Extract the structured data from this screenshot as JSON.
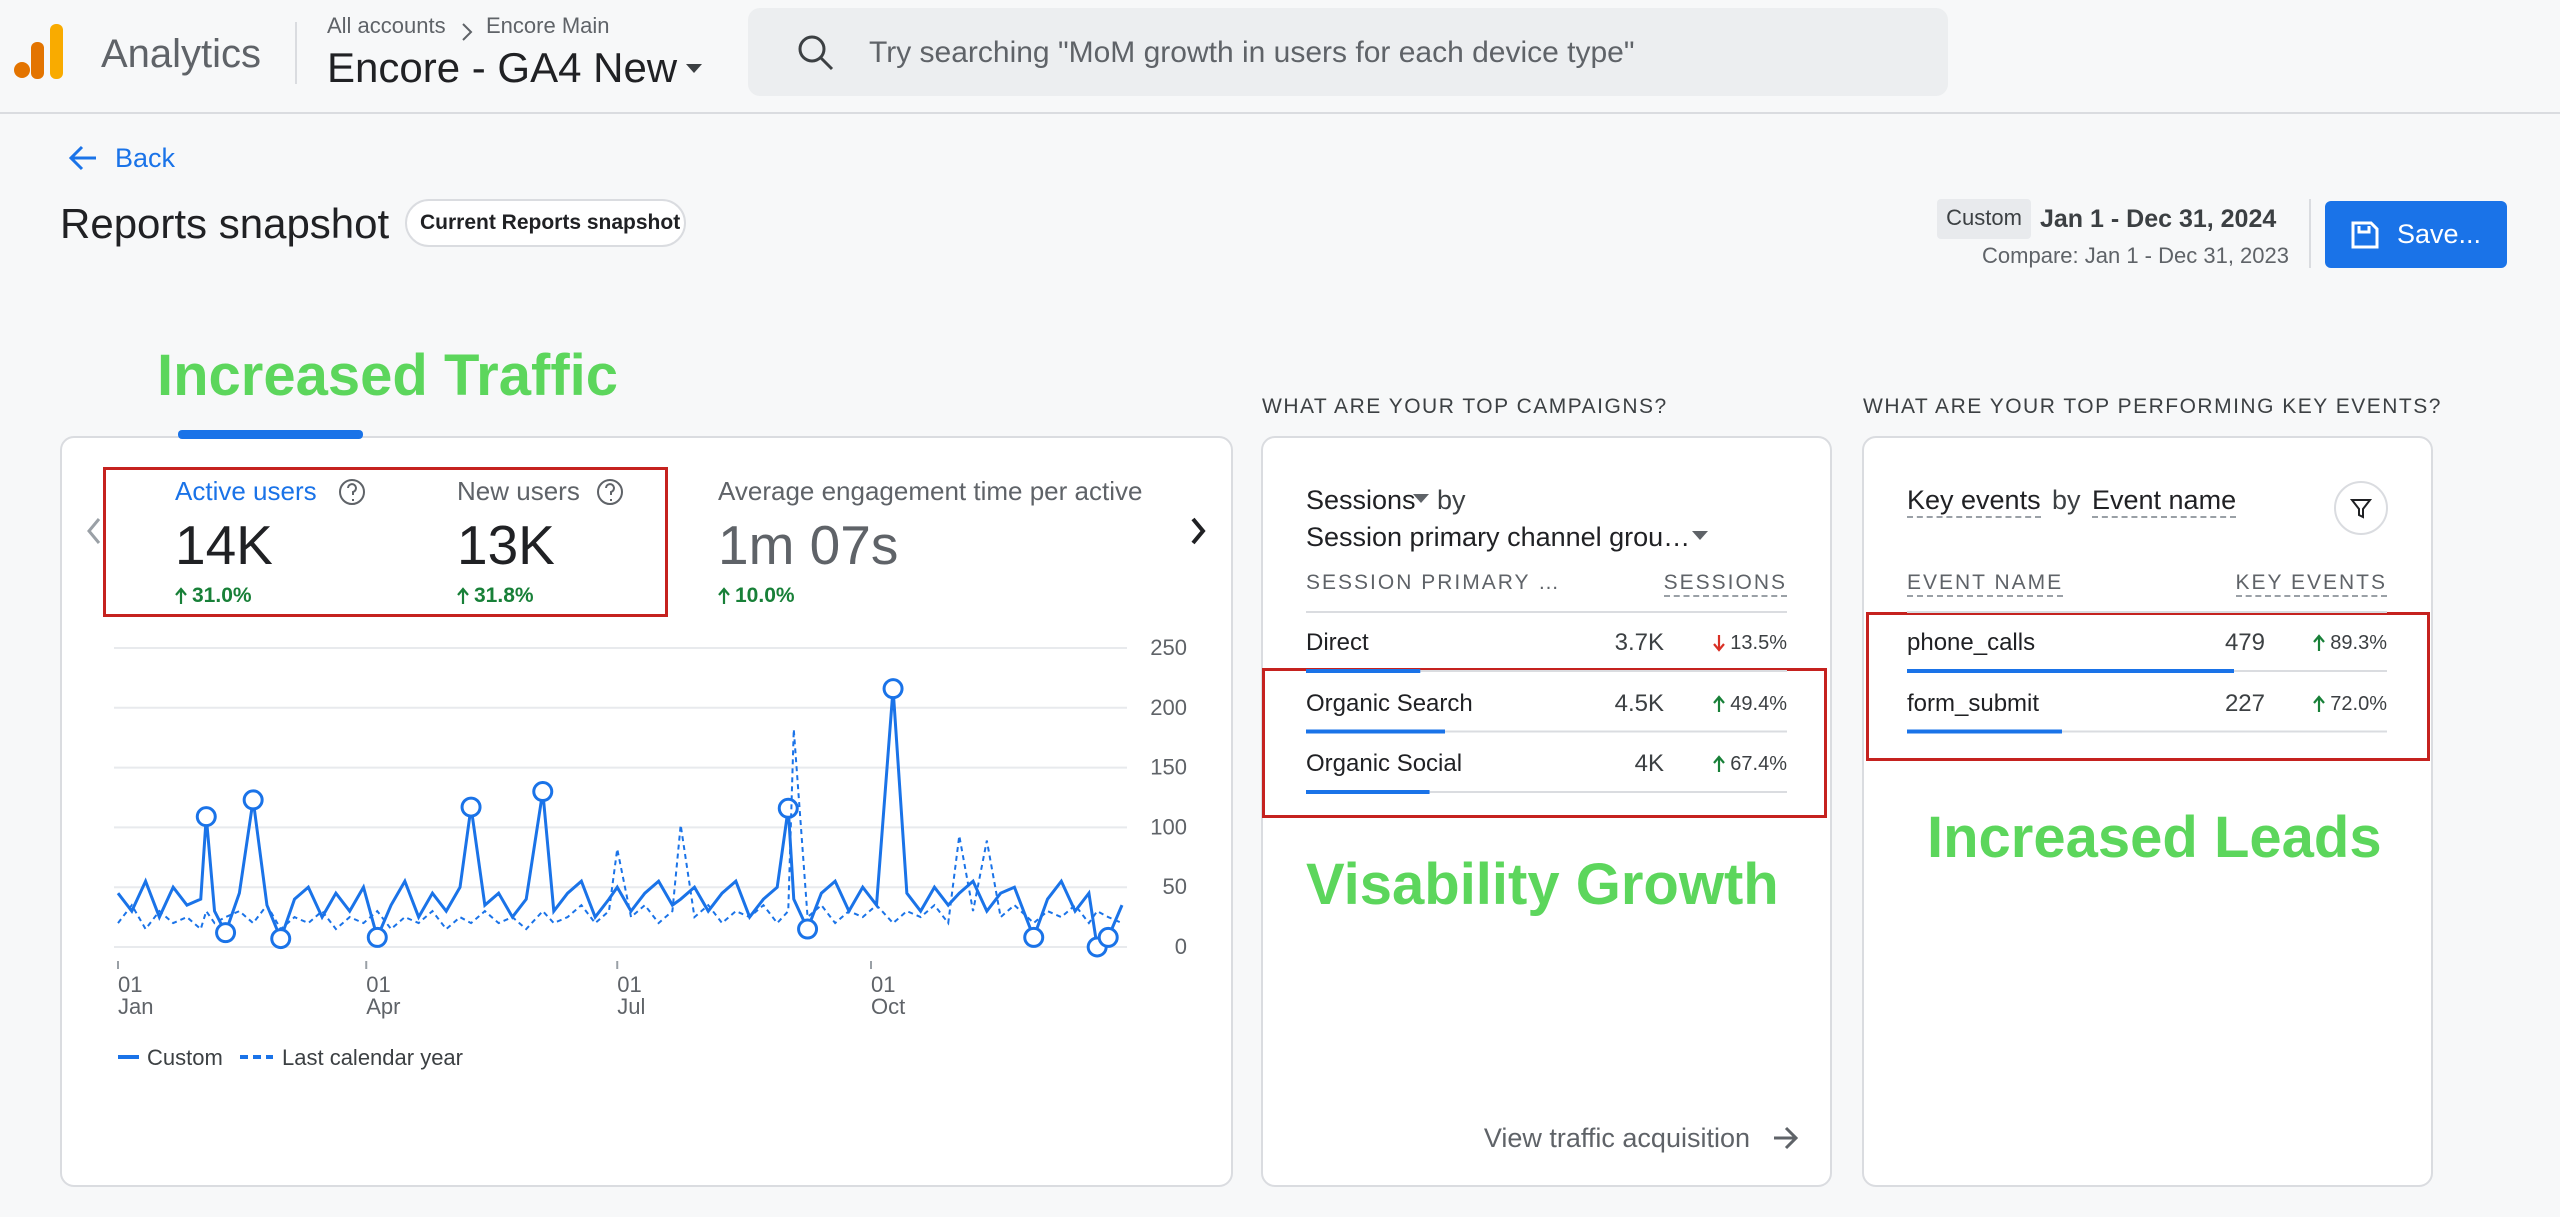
{
  "header": {
    "app": "Analytics",
    "breadcrumb": [
      "All accounts",
      "Encore Main"
    ],
    "property": "Encore - GA4 New",
    "search_placeholder": "Try searching \"MoM growth in users for each device type\""
  },
  "nav": {
    "back": "Back"
  },
  "title": "Reports snapshot",
  "chip": "Current Reports snapshot",
  "date": {
    "label": "Custom",
    "range": "Jan 1 - Dec 31, 2024",
    "compare": "Compare: Jan 1 - Dec 31, 2023"
  },
  "save": "Save...",
  "annotations": [
    "Increased Traffic",
    "Visability Growth",
    "Increased Leads"
  ],
  "metrics": [
    {
      "label": "Active users",
      "value": "14K",
      "change": "31.0%",
      "trend": "up"
    },
    {
      "label": "New users",
      "value": "13K",
      "change": "31.8%",
      "trend": "up"
    },
    {
      "label": "Average engagement time per active",
      "value": "1m 07s",
      "change": "10.0%",
      "trend": "up"
    }
  ],
  "chart_data": {
    "type": "line",
    "x": [
      0,
      5,
      10,
      15,
      20,
      25,
      30,
      32,
      35,
      39,
      44,
      49,
      54,
      59,
      64,
      69,
      74,
      79,
      84,
      89,
      94,
      99,
      104,
      109,
      114,
      119,
      124,
      128,
      133,
      138,
      143,
      148,
      154,
      158,
      163,
      168,
      173,
      178,
      181,
      186,
      191,
      196,
      201,
      204,
      209,
      214,
      219,
      224,
      229,
      234,
      239,
      243,
      245,
      250,
      255,
      260,
      265,
      270,
      275,
      281,
      286,
      291,
      296,
      301,
      305,
      310,
      315,
      320,
      325,
      332,
      337,
      342,
      347,
      352,
      355,
      359,
      364
    ],
    "xlim": [
      0,
      364
    ],
    "xticks": [
      {
        "value": 0,
        "label": "01 Jan"
      },
      {
        "value": 90,
        "label": "01 Apr"
      },
      {
        "value": 181,
        "label": "01 Jul"
      },
      {
        "value": 273,
        "label": "01 Oct"
      }
    ],
    "ylim": [
      0,
      250
    ],
    "yticks": [
      0,
      50,
      100,
      150,
      200,
      250
    ],
    "grid": true,
    "series": [
      {
        "name": "Custom",
        "color": "#1a73e8",
        "dashed": false,
        "values": [
          45,
          30,
          55,
          25,
          50,
          35,
          40,
          109,
          30,
          12,
          45,
          123,
          35,
          7,
          40,
          50,
          25,
          45,
          30,
          50,
          8,
          35,
          55,
          25,
          45,
          30,
          50,
          117,
          35,
          45,
          25,
          40,
          130,
          30,
          45,
          55,
          25,
          40,
          50,
          30,
          45,
          55,
          35,
          40,
          50,
          30,
          45,
          55,
          25,
          40,
          50,
          116,
          40,
          15,
          45,
          55,
          30,
          50,
          35,
          216,
          45,
          30,
          50,
          35,
          45,
          55,
          30,
          45,
          50,
          8,
          40,
          55,
          30,
          45,
          0,
          8,
          35
        ]
      },
      {
        "name": "Last calendar year",
        "color": "#1a73e8",
        "dashed": true,
        "values": [
          20,
          35,
          15,
          30,
          20,
          25,
          15,
          30,
          20,
          25,
          30,
          20,
          35,
          15,
          25,
          20,
          30,
          15,
          25,
          20,
          30,
          15,
          25,
          20,
          30,
          15,
          25,
          20,
          30,
          20,
          25,
          15,
          30,
          20,
          25,
          35,
          20,
          30,
          82,
          25,
          35,
          20,
          30,
          102,
          25,
          35,
          20,
          30,
          25,
          35,
          20,
          30,
          182,
          25,
          35,
          20,
          30,
          25,
          35,
          20,
          30,
          25,
          35,
          20,
          93,
          30,
          89,
          25,
          35,
          20,
          30,
          25,
          35,
          20,
          30,
          25,
          20
        ]
      }
    ]
  },
  "campaigns": {
    "heading": "WHAT ARE YOUR TOP CAMPAIGNS?",
    "metric": "Sessions",
    "by": "by",
    "dimension": "Session primary channel grou…",
    "columns": [
      "SESSION PRIMARY …",
      "SESSIONS"
    ],
    "rows": [
      {
        "name": "Direct",
        "value": 3700,
        "value_label": "3.7K",
        "change": "13.5%",
        "trend": "down"
      },
      {
        "name": "Organic Search",
        "value": 4500,
        "value_label": "4.5K",
        "change": "49.4%",
        "trend": "up"
      },
      {
        "name": "Organic Social",
        "value": 4000,
        "value_label": "4K",
        "change": "67.4%",
        "trend": "up"
      }
    ],
    "link": "View traffic acquisition"
  },
  "key_events": {
    "heading": "WHAT ARE YOUR TOP PERFORMING KEY EVENTS?",
    "metric": "Key events",
    "by": "by",
    "dimension": "Event name",
    "columns": [
      "EVENT NAME",
      "KEY EVENTS"
    ],
    "rows": [
      {
        "name": "phone_calls",
        "value": 479,
        "change": "89.3%",
        "trend": "up"
      },
      {
        "name": "form_submit",
        "value": 227,
        "change": "72.0%",
        "trend": "up"
      }
    ]
  }
}
